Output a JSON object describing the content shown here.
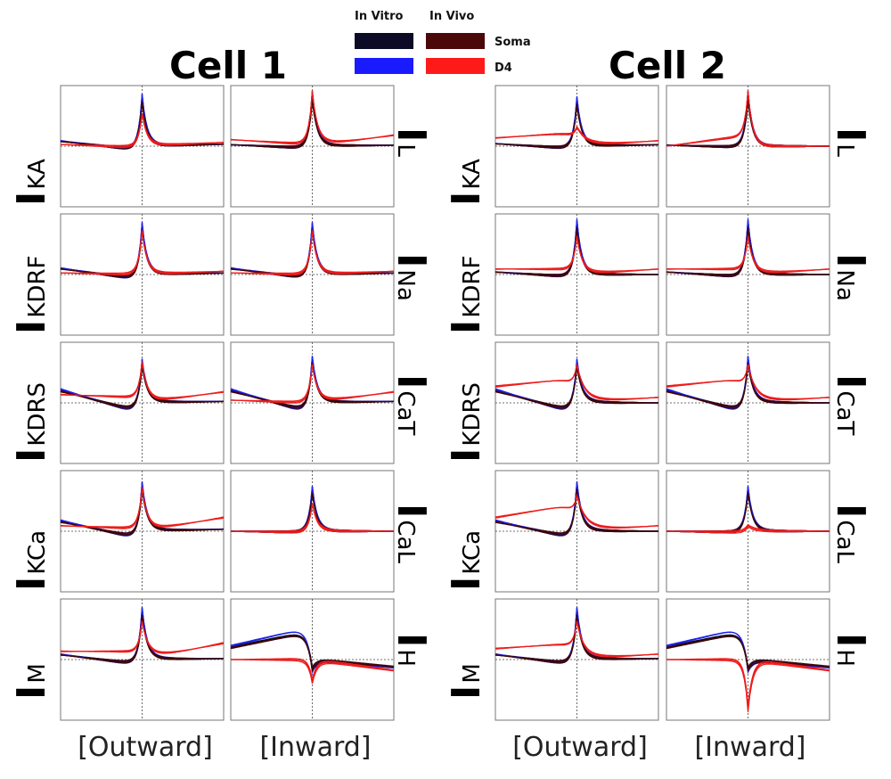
{
  "legend": {
    "headers": [
      "In Vitro",
      "In Vivo"
    ],
    "rows": [
      {
        "label": "Soma",
        "in_vitro_color": "#0b0b26",
        "in_vivo_color": "#4a0808"
      },
      {
        "label": "D4",
        "in_vitro_color": "#1a1aff",
        "in_vivo_color": "#ff1a1a"
      }
    ]
  },
  "colors": {
    "soma_in_vitro": "#0b0b26",
    "d4_in_vitro": "#1f22e8",
    "soma_in_vivo": "#3d0606",
    "d4_in_vivo": "#ee1c1c"
  },
  "cells": [
    {
      "title": "Cell 1",
      "column_labels": [
        "[Outward]",
        "[Inward]"
      ],
      "left_currents": [
        {
          "main": "I",
          "sub": "KA"
        },
        {
          "main": "I",
          "sub": "KDRF"
        },
        {
          "main": "I",
          "sub": "KDRS"
        },
        {
          "main": "I",
          "sub": "KCa"
        },
        {
          "main": "I",
          "sub": "M"
        }
      ],
      "right_currents": [
        {
          "main": "I",
          "sub": "L"
        },
        {
          "main": "I",
          "sub": "Na"
        },
        {
          "main": "I",
          "sub": "CaT"
        },
        {
          "main": "I",
          "sub": "CaL"
        },
        {
          "main": "I",
          "sub": "H"
        }
      ]
    },
    {
      "title": "Cell 2",
      "column_labels": [
        "[Outward]",
        "[Inward]"
      ],
      "left_currents": [
        {
          "main": "I",
          "sub": "KA"
        },
        {
          "main": "I",
          "sub": "KDRF"
        },
        {
          "main": "I",
          "sub": "KDRS"
        },
        {
          "main": "I",
          "sub": "KCa"
        },
        {
          "main": "I",
          "sub": "M"
        }
      ],
      "right_currents": [
        {
          "main": "I",
          "sub": "L"
        },
        {
          "main": "I",
          "sub": "Na"
        },
        {
          "main": "I",
          "sub": "CaT"
        },
        {
          "main": "I",
          "sub": "CaL"
        },
        {
          "main": "I",
          "sub": "H"
        }
      ]
    }
  ],
  "chart_data": {
    "type": "line",
    "description_of_series": [
      "Soma in vitro",
      "D4 in vitro",
      "Soma in vivo",
      "D4 in vivo"
    ],
    "panels": [
      {
        "cell": 1,
        "column": 0,
        "row": 0,
        "shapes": {
          "bv": [
            0.1,
            -0.08,
            0.95,
            0.05,
            0.04
          ],
          "rv": [
            0.03,
            -0.02,
            0.6,
            0.05,
            0.07
          ]
        }
      },
      {
        "cell": 1,
        "column": 1,
        "row": 0,
        "shapes": {
          "bv": [
            0.03,
            -0.04,
            1.0,
            0.07,
            0.02
          ],
          "rv": [
            0.12,
            0.03,
            1.0,
            0.14,
            0.2
          ]
        }
      },
      {
        "cell": 1,
        "column": 0,
        "row": 1,
        "shapes": {
          "bv": [
            0.12,
            -0.1,
            0.95,
            0.05,
            0.03
          ],
          "rv": [
            0.03,
            0.0,
            0.8,
            0.06,
            0.06
          ]
        }
      },
      {
        "cell": 1,
        "column": 1,
        "row": 1,
        "shapes": {
          "bv": [
            0.12,
            -0.08,
            0.95,
            0.05,
            0.03
          ],
          "rv": [
            0.03,
            0.0,
            0.8,
            0.06,
            0.06
          ]
        }
      },
      {
        "cell": 1,
        "column": 0,
        "row": 2,
        "shapes": {
          "bv": [
            0.25,
            -0.2,
            0.8,
            0.1,
            0.03
          ],
          "rv": [
            0.15,
            0.1,
            0.75,
            0.1,
            0.2
          ]
        }
      },
      {
        "cell": 1,
        "column": 1,
        "row": 2,
        "shapes": {
          "bv": [
            0.25,
            -0.2,
            0.85,
            0.1,
            0.03
          ],
          "rv": [
            0.05,
            0.0,
            0.7,
            0.1,
            0.2
          ]
        }
      },
      {
        "cell": 1,
        "column": 0,
        "row": 3,
        "shapes": {
          "bv": [
            0.2,
            -0.15,
            0.9,
            0.1,
            0.04
          ],
          "rv": [
            0.1,
            0.05,
            0.8,
            0.1,
            0.25
          ]
        }
      },
      {
        "cell": 1,
        "column": 1,
        "row": 3,
        "shapes": {
          "bv": [
            0.0,
            -0.02,
            0.82,
            0.04,
            0.0
          ],
          "rv": [
            0.0,
            -0.02,
            0.5,
            0.04,
            0.0
          ]
        }
      },
      {
        "cell": 1,
        "column": 0,
        "row": 4,
        "shapes": {
          "bv": [
            0.1,
            -0.1,
            0.95,
            0.1,
            0.02
          ],
          "rv": [
            0.15,
            0.15,
            0.7,
            0.2,
            0.3
          ]
        }
      },
      {
        "cell": 1,
        "column": 1,
        "row": 4,
        "shapes": {
          "bv": [
            0.25,
            0.6,
            -0.2,
            0.0,
            -0.15
          ],
          "rv": [
            0.0,
            0.0,
            -0.4,
            0.0,
            -0.2
          ]
        }
      },
      {
        "cell": 2,
        "column": 0,
        "row": 0,
        "shapes": {
          "bv": [
            0.05,
            -0.05,
            0.9,
            0.05,
            0.03
          ],
          "rv": [
            0.15,
            0.25,
            0.35,
            0.2,
            0.1
          ]
        }
      },
      {
        "cell": 2,
        "column": 1,
        "row": 0,
        "shapes": {
          "bv": [
            0.02,
            -0.02,
            1.0,
            0.02,
            0.0
          ],
          "rv": [
            0.0,
            0.2,
            1.0,
            0.0,
            0.0
          ]
        }
      },
      {
        "cell": 2,
        "column": 0,
        "row": 1,
        "shapes": {
          "bv": [
            0.05,
            -0.05,
            1.0,
            0.05,
            0.0
          ],
          "rv": [
            0.1,
            0.1,
            0.7,
            0.1,
            0.1
          ]
        }
      },
      {
        "cell": 2,
        "column": 1,
        "row": 1,
        "shapes": {
          "bv": [
            0.05,
            -0.05,
            1.0,
            0.05,
            0.0
          ],
          "rv": [
            0.1,
            0.1,
            0.7,
            0.1,
            0.1
          ]
        }
      },
      {
        "cell": 2,
        "column": 0,
        "row": 2,
        "shapes": {
          "bv": [
            0.25,
            -0.2,
            0.8,
            0.1,
            0.0
          ],
          "rv": [
            0.3,
            0.45,
            0.7,
            0.3,
            0.1
          ]
        }
      },
      {
        "cell": 2,
        "column": 1,
        "row": 2,
        "shapes": {
          "bv": [
            0.25,
            -0.2,
            0.85,
            0.1,
            0.0
          ],
          "rv": [
            0.3,
            0.45,
            0.7,
            0.3,
            0.1
          ]
        }
      },
      {
        "cell": 2,
        "column": 0,
        "row": 3,
        "shapes": {
          "bv": [
            0.2,
            -0.15,
            0.9,
            0.1,
            0.0
          ],
          "rv": [
            0.25,
            0.5,
            0.65,
            0.35,
            0.1
          ]
        }
      },
      {
        "cell": 2,
        "column": 1,
        "row": 3,
        "shapes": {
          "bv": [
            0.0,
            -0.02,
            0.82,
            0.04,
            0.0
          ],
          "rv": [
            0.0,
            -0.02,
            0.1,
            0.04,
            0.0
          ]
        }
      },
      {
        "cell": 2,
        "column": 0,
        "row": 4,
        "shapes": {
          "bv": [
            0.1,
            -0.1,
            0.95,
            0.1,
            0.02
          ],
          "rv": [
            0.2,
            0.3,
            0.7,
            0.25,
            0.1
          ]
        }
      },
      {
        "cell": 2,
        "column": 1,
        "row": 4,
        "shapes": {
          "bv": [
            0.25,
            0.6,
            -0.2,
            0.0,
            -0.15
          ],
          "rv": [
            0.0,
            0.0,
            -0.9,
            0.0,
            -0.2
          ]
        }
      }
    ]
  }
}
